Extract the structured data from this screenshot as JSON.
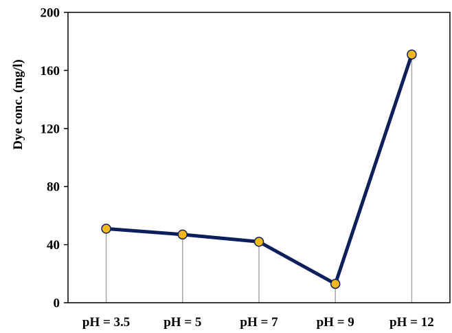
{
  "chart_data": {
    "type": "line",
    "title": "",
    "xlabel": "",
    "ylabel": "Dye conc. (mg/l)",
    "categories": [
      "pH = 3.5",
      "pH = 5",
      "pH = 7",
      "pH = 9",
      "pH = 12"
    ],
    "series": [
      {
        "values": [
          51,
          47,
          42,
          13,
          171
        ],
        "color": "#0d1f5c",
        "marker_color": "#f2b71c"
      }
    ],
    "ylim": [
      0,
      200
    ],
    "yticks": [
      "0",
      "40",
      "80",
      "120",
      "160",
      "200"
    ],
    "drop_lines": true,
    "drop_line_color": "#a6a6a6",
    "grid": false,
    "legend": "none"
  }
}
